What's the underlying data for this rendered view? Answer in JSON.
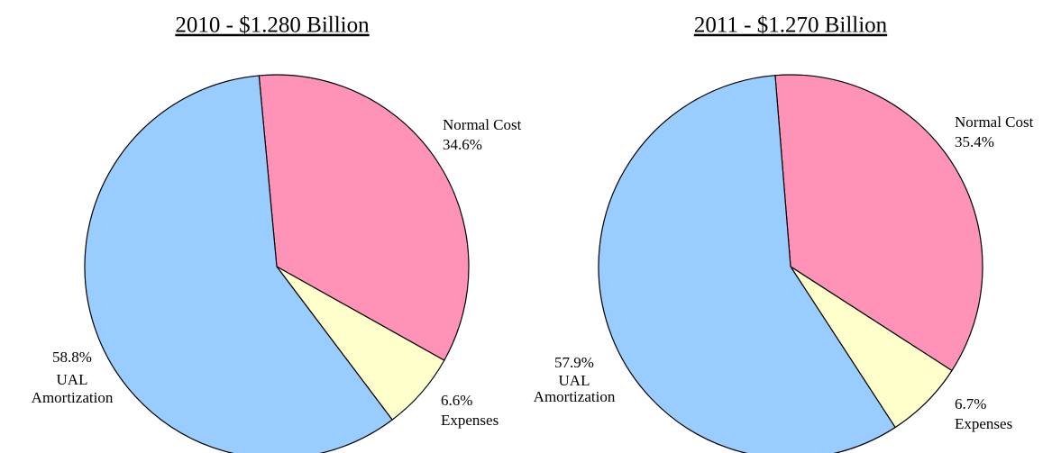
{
  "chart_data": [
    {
      "type": "pie",
      "title": "2010 - $1.280 Billion",
      "slices": [
        {
          "name": "Normal Cost",
          "value": 34.6,
          "label": "34.6%",
          "color": "#ff93b7"
        },
        {
          "name": "Expenses",
          "value": 6.6,
          "label": "6.6%",
          "color": "#ffffcc"
        },
        {
          "name": "UAL Amortization",
          "name_lines": [
            "UAL",
            "Amortization"
          ],
          "value": 58.8,
          "label": "58.8%",
          "color": "#99ccff"
        }
      ]
    },
    {
      "type": "pie",
      "title": "2011 - $1.270 Billion",
      "slices": [
        {
          "name": "Normal Cost",
          "value": 35.4,
          "label": "35.4%",
          "color": "#ff93b7"
        },
        {
          "name": "Expenses",
          "value": 6.7,
          "label": "6.7%",
          "color": "#ffffcc"
        },
        {
          "name": "UAL Amortization",
          "name_lines": [
            "UAL",
            "Amortization"
          ],
          "value": 57.9,
          "label": "57.9%",
          "color": "#99ccff"
        }
      ]
    }
  ]
}
